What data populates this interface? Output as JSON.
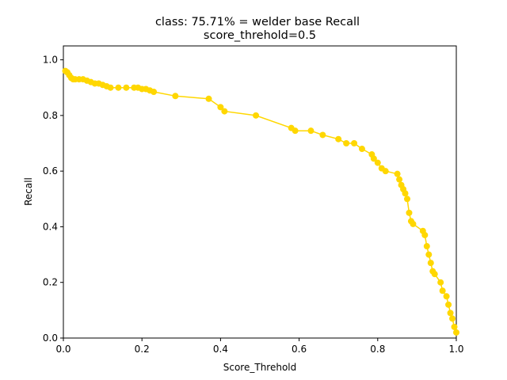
{
  "chart_data": {
    "type": "line",
    "title": "class: 75.71% = welder base Recall",
    "subtitle": "score_threhold=0.5",
    "xlabel": "Score_Threhold",
    "ylabel": "Recall",
    "xlim": [
      0.0,
      1.0
    ],
    "ylim": [
      0.0,
      1.05
    ],
    "xticks": [
      "0.0",
      "0.2",
      "0.4",
      "0.6",
      "0.8",
      "1.0"
    ],
    "yticks": [
      "0.0",
      "0.2",
      "0.4",
      "0.6",
      "0.8",
      "1.0"
    ],
    "grid": false,
    "color": "#ffd700",
    "series": [
      {
        "x": [
          0.005,
          0.01,
          0.015,
          0.02,
          0.025,
          0.03,
          0.04,
          0.05,
          0.06,
          0.07,
          0.08,
          0.09,
          0.1,
          0.11,
          0.12,
          0.14,
          0.16,
          0.18,
          0.19,
          0.2,
          0.21,
          0.22,
          0.23,
          0.285,
          0.37,
          0.4,
          0.41,
          0.49,
          0.58,
          0.59,
          0.63,
          0.66,
          0.7,
          0.72,
          0.74,
          0.76,
          0.785,
          0.79,
          0.8,
          0.81,
          0.82,
          0.85,
          0.855,
          0.86,
          0.865,
          0.87,
          0.875,
          0.88,
          0.885,
          0.89,
          0.915,
          0.92,
          0.925,
          0.93,
          0.935,
          0.94,
          0.945,
          0.96,
          0.965,
          0.975,
          0.98,
          0.985,
          0.99,
          0.995,
          1.0
        ],
        "y": [
          0.96,
          0.955,
          0.945,
          0.935,
          0.93,
          0.93,
          0.93,
          0.93,
          0.925,
          0.92,
          0.915,
          0.915,
          0.91,
          0.905,
          0.9,
          0.9,
          0.9,
          0.9,
          0.9,
          0.895,
          0.895,
          0.89,
          0.885,
          0.87,
          0.86,
          0.83,
          0.815,
          0.8,
          0.755,
          0.745,
          0.745,
          0.73,
          0.715,
          0.7,
          0.7,
          0.68,
          0.66,
          0.645,
          0.63,
          0.61,
          0.6,
          0.59,
          0.57,
          0.55,
          0.535,
          0.52,
          0.5,
          0.45,
          0.42,
          0.41,
          0.385,
          0.37,
          0.33,
          0.3,
          0.27,
          0.24,
          0.23,
          0.2,
          0.17,
          0.15,
          0.12,
          0.09,
          0.07,
          0.04,
          0.02
        ]
      }
    ]
  }
}
